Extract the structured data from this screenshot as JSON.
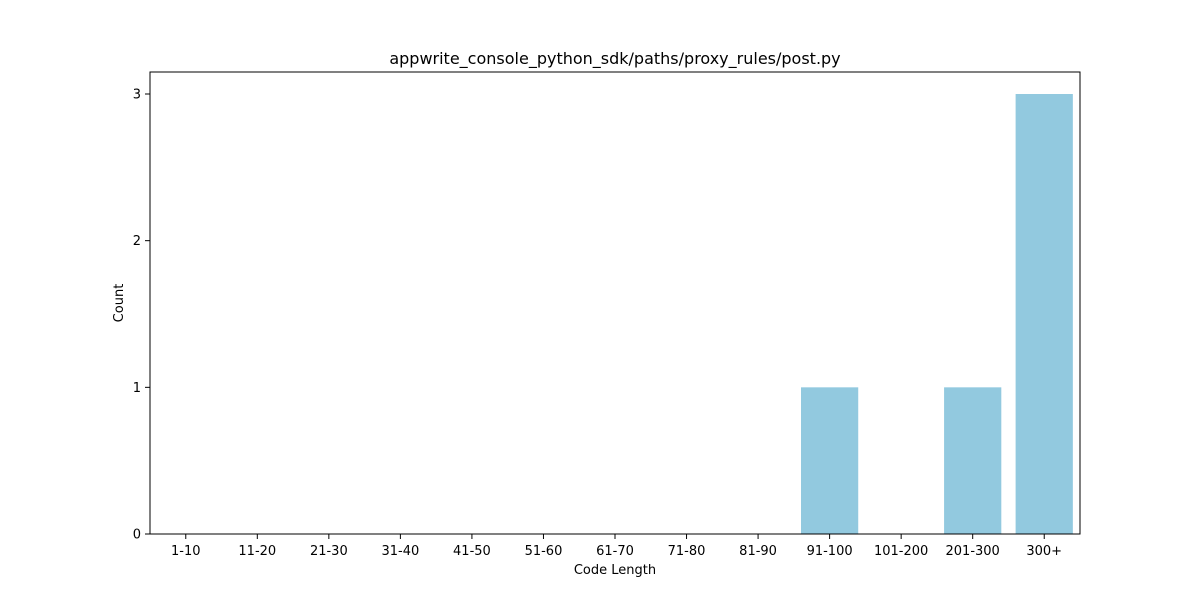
{
  "chart_data": {
    "type": "bar",
    "title": "appwrite_console_python_sdk/paths/proxy_rules/post.py",
    "xlabel": "Code Length",
    "ylabel": "Count",
    "categories": [
      "1-10",
      "11-20",
      "21-30",
      "31-40",
      "41-50",
      "51-60",
      "61-70",
      "71-80",
      "81-90",
      "91-100",
      "101-200",
      "201-300",
      "300+"
    ],
    "values": [
      0,
      0,
      0,
      0,
      0,
      0,
      0,
      0,
      0,
      1,
      0,
      1,
      3
    ],
    "yticks": [
      0,
      1,
      2,
      3
    ],
    "ylim": [
      0,
      3.15
    ],
    "bar_color": "#92c9df",
    "grid": false,
    "legend": "none"
  }
}
